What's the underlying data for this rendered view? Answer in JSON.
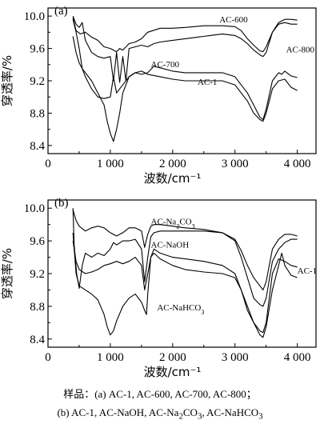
{
  "chart_data": [
    {
      "type": "line",
      "panel_label": "(a)",
      "xlabel": "波数/cm⁻¹",
      "ylabel": "穿透率/%",
      "xlim": [
        0,
        4300
      ],
      "ylim": [
        8.3,
        10.1
      ],
      "xticks": [
        0,
        1000,
        2000,
        3000,
        4000
      ],
      "xtick_labels": [
        "0",
        "1 000",
        "2 000",
        "3 000",
        "4 000"
      ],
      "yticks": [
        8.4,
        8.8,
        9.2,
        9.6,
        10.0
      ],
      "ytick_labels": [
        "8.4",
        "8.8",
        "9.2",
        "9.6",
        "10.0"
      ],
      "series": [
        {
          "name": "AC-600",
          "label_at": [
            2750,
            9.92
          ],
          "x": [
            400,
            450,
            520,
            600,
            700,
            800,
            900,
            1000,
            1050,
            1100,
            1150,
            1200,
            1300,
            1400,
            1500,
            1600,
            1800,
            2000,
            2200,
            2500,
            2800,
            3000,
            3100,
            3200,
            3300,
            3400,
            3450,
            3500,
            3600,
            3700,
            3800,
            3900,
            4000
          ],
          "y": [
            9.98,
            9.82,
            9.78,
            9.8,
            9.74,
            9.7,
            9.62,
            9.6,
            9.58,
            9.56,
            9.6,
            9.58,
            9.66,
            9.68,
            9.72,
            9.8,
            9.85,
            9.85,
            9.86,
            9.88,
            9.88,
            9.87,
            9.82,
            9.72,
            9.64,
            9.57,
            9.56,
            9.62,
            9.8,
            9.9,
            9.92,
            9.9,
            9.9
          ]
        },
        {
          "name": "AC-800",
          "label_at": [
            3820,
            9.55
          ],
          "x": [
            400,
            450,
            500,
            550,
            600,
            700,
            800,
            900,
            1000,
            1050,
            1100,
            1150,
            1200,
            1250,
            1300,
            1400,
            1500,
            1600,
            1700,
            1800,
            2000,
            2200,
            2400,
            2600,
            2800,
            3000,
            3100,
            3200,
            3300,
            3400,
            3450,
            3500,
            3600,
            3700,
            3800,
            3900,
            4000
          ],
          "y": [
            10.0,
            9.9,
            9.86,
            9.92,
            9.7,
            9.55,
            9.5,
            9.48,
            9.5,
            9.2,
            9.55,
            9.18,
            9.5,
            9.2,
            9.6,
            9.62,
            9.64,
            9.62,
            9.66,
            9.68,
            9.7,
            9.72,
            9.74,
            9.76,
            9.78,
            9.76,
            9.72,
            9.66,
            9.58,
            9.52,
            9.5,
            9.55,
            9.8,
            9.92,
            9.96,
            9.96,
            9.95
          ]
        },
        {
          "name": "AC-700",
          "label_at": [
            1650,
            9.37
          ],
          "x": [
            400,
            450,
            500,
            550,
            600,
            700,
            800,
            900,
            1000,
            1050,
            1100,
            1200,
            1300,
            1400,
            1500,
            1600,
            1700,
            1800,
            2000,
            2200,
            2500,
            2800,
            3000,
            3200,
            3300,
            3400,
            3450,
            3500,
            3600,
            3700,
            3750,
            3800,
            3900,
            4000
          ],
          "y": [
            9.96,
            9.8,
            9.6,
            9.35,
            9.25,
            9.1,
            9.0,
            8.98,
            9.0,
            9.25,
            9.05,
            9.15,
            9.25,
            9.3,
            9.28,
            9.3,
            9.38,
            9.36,
            9.32,
            9.3,
            9.3,
            9.3,
            9.25,
            9.05,
            8.9,
            8.75,
            8.72,
            8.85,
            9.2,
            9.3,
            9.28,
            9.32,
            9.26,
            9.24
          ]
        },
        {
          "name": "AC-1",
          "label_at": [
            2400,
            9.15
          ],
          "x": [
            400,
            450,
            500,
            550,
            600,
            700,
            800,
            900,
            950,
            1000,
            1050,
            1100,
            1150,
            1200,
            1300,
            1400,
            1500,
            1600,
            1800,
            2000,
            2200,
            2500,
            2800,
            3000,
            3200,
            3300,
            3400,
            3450,
            3500,
            3600,
            3700,
            3800,
            3900,
            4000
          ],
          "y": [
            9.75,
            9.55,
            9.42,
            9.35,
            9.3,
            9.2,
            9.05,
            8.9,
            8.7,
            8.55,
            8.45,
            8.6,
            8.8,
            9.05,
            9.25,
            9.3,
            9.32,
            9.28,
            9.25,
            9.22,
            9.2,
            9.2,
            9.2,
            9.15,
            8.95,
            8.8,
            8.72,
            8.7,
            8.8,
            9.1,
            9.2,
            9.22,
            9.12,
            9.08
          ]
        }
      ]
    },
    {
      "type": "line",
      "panel_label": "(b)",
      "xlabel": "波数/cm⁻¹",
      "ylabel": "穿透率/%",
      "xlim": [
        0,
        4300
      ],
      "ylim": [
        8.3,
        10.1
      ],
      "xticks": [
        0,
        1000,
        2000,
        3000,
        4000
      ],
      "xtick_labels": [
        "0",
        "1 000",
        "2 000",
        "3 000",
        "4 000"
      ],
      "yticks": [
        8.4,
        8.8,
        9.2,
        9.6,
        10.0
      ],
      "ytick_labels": [
        "8.4",
        "8.8",
        "9.2",
        "9.6",
        "10.0"
      ],
      "series": [
        {
          "name": "AC-Na2CO3",
          "label_parts": [
            "AC-Na",
            "2",
            "CO",
            "3"
          ],
          "label_at": [
            1650,
            9.8
          ],
          "x": [
            400,
            450,
            500,
            600,
            700,
            800,
            900,
            1000,
            1100,
            1200,
            1300,
            1400,
            1500,
            1550,
            1600,
            1650,
            1700,
            1800,
            2000,
            2200,
            2500,
            2800,
            3000,
            3100,
            3200,
            3300,
            3400,
            3450,
            3500,
            3600,
            3700,
            3800,
            3900,
            4000
          ],
          "y": [
            9.98,
            9.85,
            9.78,
            9.72,
            9.76,
            9.78,
            9.76,
            9.7,
            9.66,
            9.7,
            9.76,
            9.76,
            9.72,
            9.52,
            9.68,
            9.78,
            9.8,
            9.8,
            9.78,
            9.76,
            9.74,
            9.7,
            9.62,
            9.48,
            9.3,
            9.15,
            9.05,
            9.0,
            9.1,
            9.5,
            9.62,
            9.68,
            9.68,
            9.66
          ]
        },
        {
          "name": "AC-NaOH",
          "label_at": [
            1650,
            9.52
          ],
          "x": [
            400,
            420,
            460,
            500,
            550,
            600,
            700,
            800,
            900,
            1000,
            1050,
            1100,
            1200,
            1300,
            1400,
            1500,
            1550,
            1600,
            1650,
            1700,
            1800,
            2000,
            2200,
            2500,
            2800,
            3000,
            3100,
            3200,
            3300,
            3400,
            3450,
            3500,
            3600,
            3700,
            3800,
            3900,
            4000
          ],
          "y": [
            10.0,
            9.55,
            9.2,
            9.02,
            9.3,
            9.45,
            9.4,
            9.45,
            9.42,
            9.5,
            9.58,
            9.55,
            9.6,
            9.6,
            9.62,
            9.5,
            9.1,
            9.4,
            9.65,
            9.7,
            9.72,
            9.72,
            9.72,
            9.72,
            9.7,
            9.6,
            9.4,
            9.15,
            8.9,
            8.82,
            8.8,
            8.9,
            9.35,
            9.5,
            9.58,
            9.62,
            9.62
          ]
        },
        {
          "name": "AC-1",
          "label_at": [
            4000,
            9.2
          ],
          "x": [
            400,
            450,
            500,
            600,
            700,
            800,
            900,
            1000,
            1100,
            1200,
            1300,
            1400,
            1500,
            1550,
            1600,
            1650,
            1700,
            1800,
            2000,
            2200,
            2500,
            2800,
            3000,
            3100,
            3200,
            3300,
            3400,
            3450,
            3500,
            3600,
            3700,
            3750,
            3800,
            3900,
            4000
          ],
          "y": [
            9.6,
            9.35,
            9.25,
            9.2,
            9.22,
            9.25,
            9.3,
            9.32,
            9.35,
            9.32,
            9.35,
            9.4,
            9.3,
            9.0,
            9.2,
            9.4,
            9.45,
            9.38,
            9.3,
            9.25,
            9.22,
            9.2,
            9.15,
            9.0,
            8.8,
            8.6,
            8.45,
            8.42,
            8.55,
            9.0,
            9.3,
            9.45,
            9.3,
            9.18,
            9.15
          ]
        },
        {
          "name": "AC-NaHCO3",
          "label_parts": [
            "AC-NaHCO",
            "3",
            "",
            ""
          ],
          "label_at": [
            1750,
            8.75
          ],
          "x": [
            400,
            450,
            500,
            600,
            700,
            800,
            900,
            950,
            1000,
            1050,
            1100,
            1200,
            1300,
            1400,
            1500,
            1550,
            1580,
            1600,
            1650,
            1700,
            1800,
            2000,
            2200,
            2500,
            2800,
            3000,
            3100,
            3200,
            3300,
            3400,
            3450,
            3500,
            3600,
            3700,
            3800,
            3900,
            4000
          ],
          "y": [
            9.7,
            9.2,
            9.05,
            9.0,
            8.95,
            8.88,
            8.7,
            8.55,
            8.45,
            8.5,
            8.62,
            8.8,
            8.9,
            8.95,
            8.85,
            8.75,
            8.7,
            8.95,
            9.4,
            9.5,
            9.45,
            9.4,
            9.38,
            9.35,
            9.3,
            9.2,
            9.0,
            8.75,
            8.6,
            8.5,
            8.48,
            8.6,
            9.2,
            9.38,
            9.35,
            9.3,
            9.28
          ]
        }
      ]
    }
  ],
  "caption": {
    "line1": "样品：(a) AC-1, AC-600, AC-700, AC-800；",
    "line2_prefix": "(b) AC-1, AC-NaOH, AC-Na",
    "line2_sub1": "2",
    "line2_mid": "CO",
    "line2_sub2": "3",
    "line2_suffix": ", AC-NaHCO",
    "line2_sub3": "3"
  }
}
